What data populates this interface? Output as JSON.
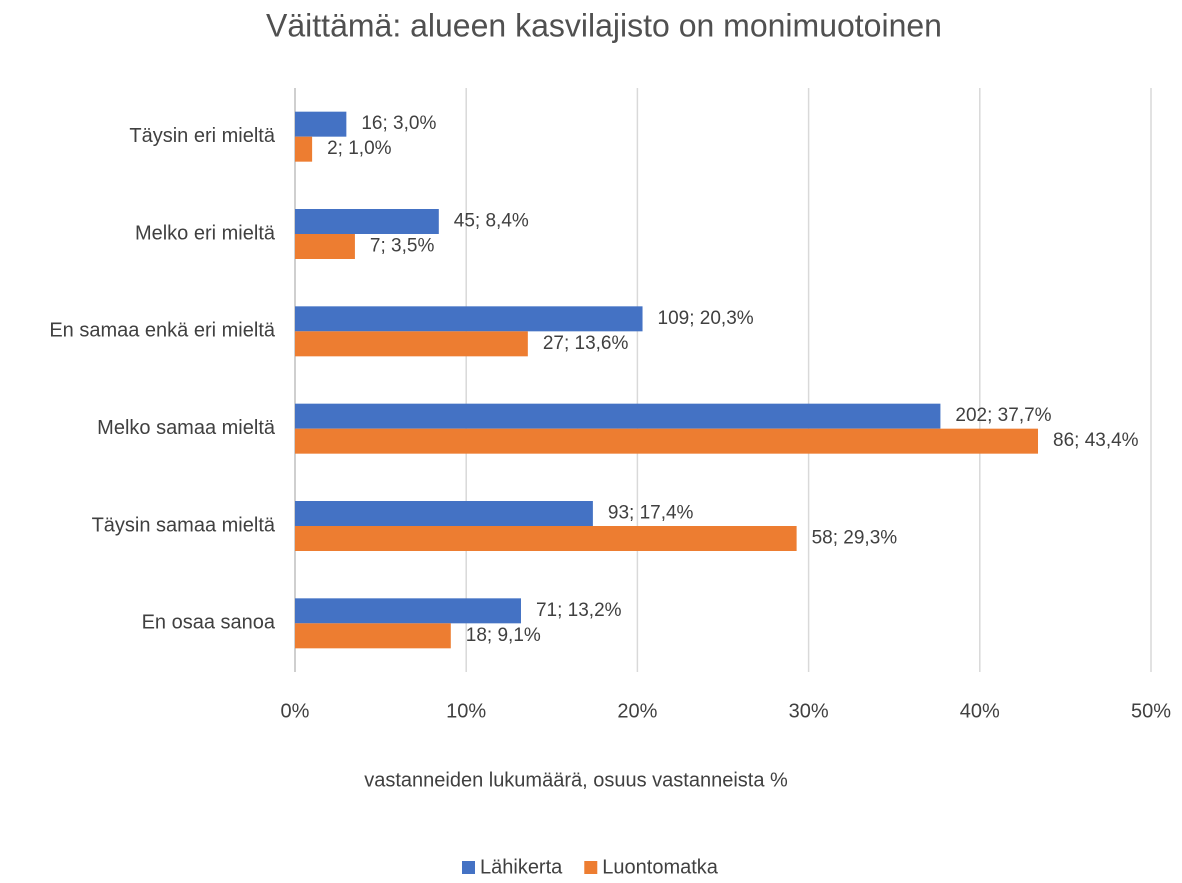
{
  "chart_data": {
    "type": "barh",
    "title": "Väittämä: alueen kasvilajisto on monimuotoinen",
    "xlabel": "vastanneiden lukumäärä, osuus vastanneista %",
    "categories": [
      "Täysin eri mieltä",
      "Melko eri mieltä",
      "En samaa enkä eri mieltä",
      "Melko samaa mieltä",
      "Täysin samaa mieltä",
      "En osaa sanoa"
    ],
    "series": [
      {
        "name": "Lähikerta",
        "color": "#4472c4",
        "values": [
          3.0,
          8.4,
          20.3,
          37.7,
          17.4,
          13.2
        ],
        "value_labels": [
          "16; 3,0%",
          "45; 8,4%",
          "109; 20,3%",
          "202; 37,7%",
          "93; 17,4%",
          "71; 13,2%"
        ]
      },
      {
        "name": "Luontomatka",
        "color": "#ed7d31",
        "values": [
          1.0,
          3.5,
          13.6,
          43.4,
          29.3,
          9.1
        ],
        "value_labels": [
          "2; 1,0%",
          "7; 3,5%",
          "27; 13,6%",
          "86; 43,4%",
          "58; 29,3%",
          "18; 9,1%"
        ]
      }
    ],
    "xlim": [
      0,
      50
    ],
    "xticks": [
      {
        "value": 0,
        "label": "0%"
      },
      {
        "value": 10,
        "label": "10%"
      },
      {
        "value": 20,
        "label": "20%"
      },
      {
        "value": 30,
        "label": "30%"
      },
      {
        "value": 40,
        "label": "40%"
      },
      {
        "value": 50,
        "label": "50%"
      }
    ],
    "grid": true,
    "legend": "bottom"
  }
}
